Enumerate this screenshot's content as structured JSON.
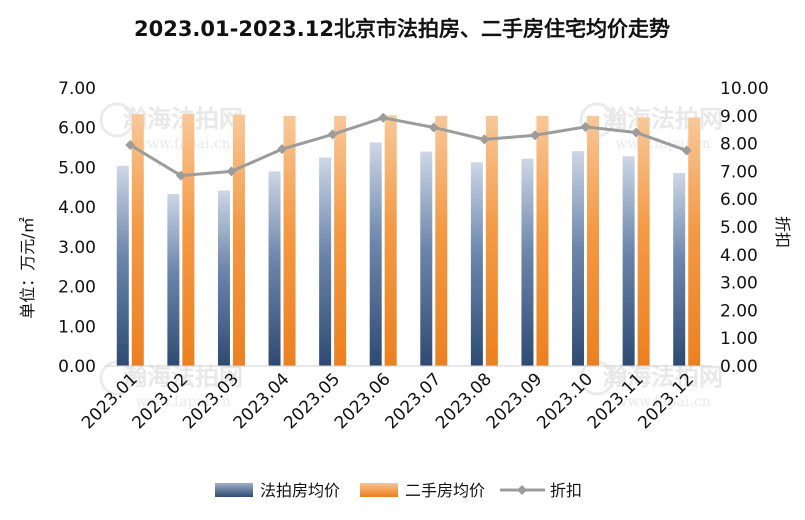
{
  "chart_data": {
    "type": "bar",
    "title": "2023.01-2023.12北京市法拍房、二手房住宅均价走势",
    "categories": [
      "2023.01",
      "2023.02",
      "2023.03",
      "2023.04",
      "2023.05",
      "2023.06",
      "2023.07",
      "2023.08",
      "2023.09",
      "2023.10",
      "2023.11",
      "2023.12"
    ],
    "series": [
      {
        "name": "法拍房均价",
        "type": "bar",
        "axis": "left",
        "color": "#3d5a85",
        "values": [
          5.04,
          4.33,
          4.42,
          4.9,
          5.25,
          5.63,
          5.4,
          5.13,
          5.22,
          5.41,
          5.28,
          4.86
        ]
      },
      {
        "name": "二手房均价",
        "type": "bar",
        "axis": "left",
        "color": "#f28c2e",
        "values": [
          6.34,
          6.35,
          6.33,
          6.3,
          6.3,
          6.31,
          6.3,
          6.3,
          6.3,
          6.3,
          6.26,
          6.26
        ]
      },
      {
        "name": "折扣",
        "type": "line",
        "axis": "right",
        "color": "#9c9c9c",
        "values": [
          7.95,
          6.85,
          7.0,
          7.8,
          8.33,
          8.93,
          8.58,
          8.15,
          8.3,
          8.6,
          8.4,
          7.75
        ]
      }
    ],
    "ylabel": "单位：万元/㎡",
    "y2label": "折扣",
    "ylim": [
      0,
      7
    ],
    "y2lim": [
      0,
      10
    ],
    "yticks": [
      "0.00",
      "1.00",
      "2.00",
      "3.00",
      "4.00",
      "5.00",
      "6.00",
      "7.00"
    ],
    "y2ticks": [
      "0.00",
      "1.00",
      "2.00",
      "3.00",
      "4.00",
      "5.00",
      "6.00",
      "7.00",
      "8.00",
      "9.00",
      "10.00"
    ],
    "legend_position": "bottom",
    "grid": false
  },
  "watermark": {
    "name": "瀚海法拍网",
    "url": "www.fapai.cn"
  }
}
